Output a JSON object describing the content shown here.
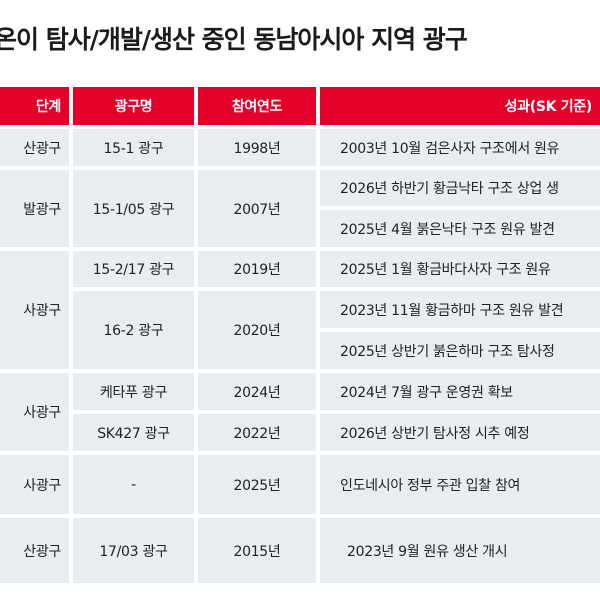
{
  "title": "온이 탐사/개발/생산 중인 동남아시아 지역 광구",
  "header": {
    "stage": "단계",
    "block": "광구명",
    "year": "참여연도",
    "result": "성과(SK 기준)"
  },
  "colors": {
    "header_bg": "#e4002b",
    "cell_bg": "#e9edef"
  },
  "rows": [
    {
      "stage": "산광구",
      "block": "15-1 광구",
      "year": "1998년",
      "results": [
        "2003년 10월 검은사자 구조에서 원유"
      ]
    },
    {
      "stage": "발광구",
      "block": "15-1/05 광구",
      "year": "2007년",
      "results": [
        "2026년 하반기 황금낙타 구조 상업 생",
        "2025년 4월 붉은낙타 구조 원유 발견"
      ]
    },
    {
      "stage": "사광구",
      "blocks": [
        {
          "block": "15-2/17 광구",
          "year": "2019년",
          "results": [
            "2025년 1월 황금바다사자 구조 원유"
          ]
        },
        {
          "block": "16-2 광구",
          "year": "2020년",
          "results": [
            "2023년 11월 황금하마 구조 원유 발견",
            "2025년 상반기 붉은하마 구조 탐사정"
          ]
        }
      ]
    },
    {
      "stage": "사광구",
      "blocks": [
        {
          "block": "케타푸 광구",
          "year": "2024년",
          "results": [
            "2024년 7월 광구 운영권 확보"
          ]
        },
        {
          "block": "SK427 광구",
          "year": "2022년",
          "results": [
            "2026년 상반기 탐사정 시추 예정"
          ]
        }
      ]
    },
    {
      "stage": "사광구",
      "block": "-",
      "year": "2025년",
      "results": [
        "인도네시아 정부 주관 입찰 참여"
      ]
    },
    {
      "stage": "산광구",
      "block": "17/03 광구",
      "year": "2015년",
      "results": [
        "2023년 9월 원유 생산 개시"
      ]
    }
  ]
}
